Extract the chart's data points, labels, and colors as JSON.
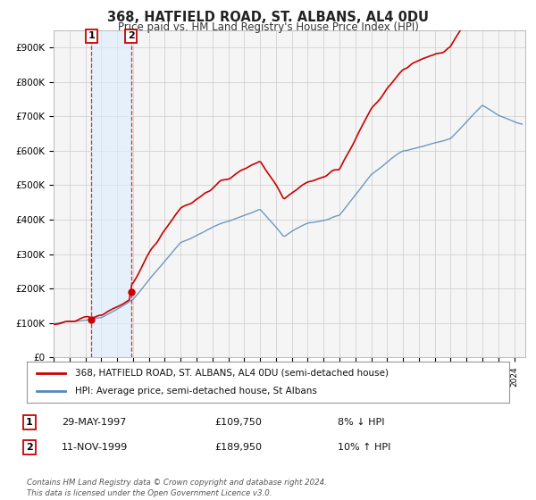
{
  "title": "368, HATFIELD ROAD, ST. ALBANS, AL4 0DU",
  "subtitle": "Price paid vs. HM Land Registry's House Price Index (HPI)",
  "ylim": [
    0,
    950000
  ],
  "yticks": [
    0,
    100000,
    200000,
    300000,
    400000,
    500000,
    600000,
    700000,
    800000,
    900000
  ],
  "ytick_labels": [
    "£0",
    "£100K",
    "£200K",
    "£300K",
    "£400K",
    "£500K",
    "£600K",
    "£700K",
    "£800K",
    "£900K"
  ],
  "price_paid_color": "#cc0000",
  "hpi_color": "#5588bb",
  "hpi_fill_color": "#ddeeff",
  "purchase1_date": 1997.38,
  "purchase1_price": 109750,
  "purchase1_label": "1",
  "purchase2_date": 1999.87,
  "purchase2_price": 189950,
  "purchase2_label": "2",
  "xlim_start": 1995.0,
  "xlim_end": 2024.7,
  "legend_entries": [
    "368, HATFIELD ROAD, ST. ALBANS, AL4 0DU (semi-detached house)",
    "HPI: Average price, semi-detached house, St Albans"
  ],
  "table_rows": [
    {
      "num": "1",
      "date": "29-MAY-1997",
      "price": "£109,750",
      "hpi": "8% ↓ HPI"
    },
    {
      "num": "2",
      "date": "11-NOV-1999",
      "price": "£189,950",
      "hpi": "10% ↑ HPI"
    }
  ],
  "footer": "Contains HM Land Registry data © Crown copyright and database right 2024.\nThis data is licensed under the Open Government Licence v3.0.",
  "background_color": "#ffffff",
  "plot_bg_color": "#f5f5f5"
}
